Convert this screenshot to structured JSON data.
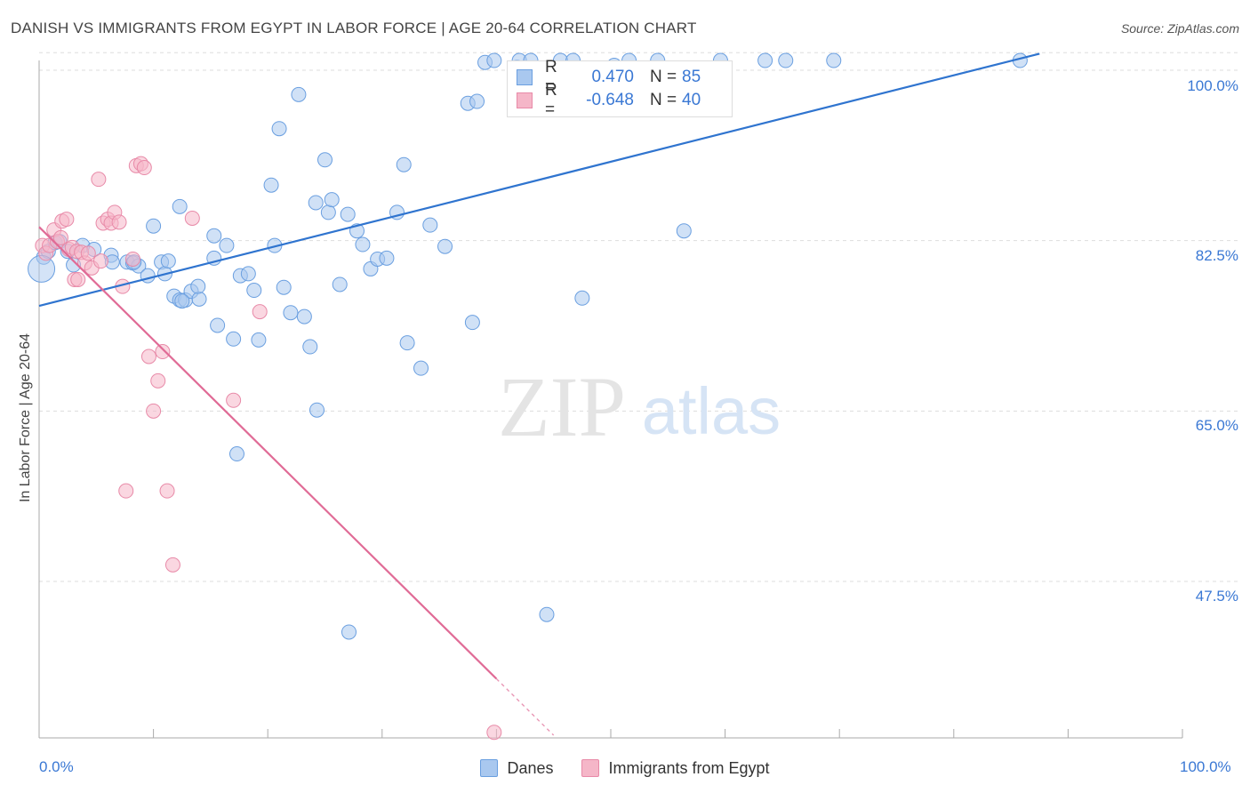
{
  "title": "DANISH VS IMMIGRANTS FROM EGYPT IN LABOR FORCE | AGE 20-64 CORRELATION CHART",
  "source": "Source: ZipAtlas.com",
  "watermark": {
    "zip": "ZIP",
    "atlas": "atlas"
  },
  "legend_top": {
    "rows": [
      {
        "r_label": "R =",
        "r_value": "0.470",
        "n_label": "N =",
        "n_value": "85"
      },
      {
        "r_label": "R =",
        "r_value": "-0.648",
        "n_label": "N =",
        "n_value": "40"
      }
    ]
  },
  "legend_bottom": [
    {
      "label": "Danes"
    },
    {
      "label": "Immigrants from Egypt"
    }
  ],
  "colors": {
    "blue_fill": "#a9c8ef",
    "blue_stroke": "#6a9fe0",
    "blue_line": "#2f74cf",
    "pink_fill": "#f5b6c8",
    "pink_stroke": "#e88aa8",
    "pink_line": "#e06b96",
    "tick_text": "#3a78d4",
    "grid": "#dddddd"
  },
  "chart_data": {
    "type": "scatter",
    "title": "DANISH VS IMMIGRANTS FROM EGYPT IN LABOR FORCE | AGE 20-64 CORRELATION CHART",
    "xlabel": "",
    "ylabel": "In Labor Force | Age 20-64",
    "xlim": [
      0,
      100
    ],
    "ylim": [
      32.5,
      102
    ],
    "x_tick_labels": [
      "0.0%",
      "100.0%"
    ],
    "y_ticks": [
      47.5,
      65.0,
      82.5,
      100.0
    ],
    "y_tick_labels": [
      "47.5%",
      "65.0%",
      "82.5%",
      "100.0%"
    ],
    "grid": true,
    "legend_position": "bottom",
    "series": [
      {
        "name": "Danes",
        "R": 0.47,
        "N": 85,
        "trend": {
          "x": [
            0,
            87.5
          ],
          "y": [
            75.8,
            101.7
          ]
        },
        "points": [
          [
            0.4,
            80.8
          ],
          [
            0.8,
            81.4
          ],
          [
            1.4,
            82.3
          ],
          [
            1.8,
            82.4
          ],
          [
            2.5,
            81.4
          ],
          [
            3.8,
            82.0
          ],
          [
            4.8,
            81.6
          ],
          [
            6.3,
            81.0
          ],
          [
            6.4,
            80.3
          ],
          [
            7.7,
            80.3
          ],
          [
            8.2,
            80.2
          ],
          [
            8.7,
            79.9
          ],
          [
            9.5,
            78.9
          ],
          [
            10.0,
            84.0
          ],
          [
            10.7,
            80.3
          ],
          [
            11.0,
            79.1
          ],
          [
            11.3,
            80.4
          ],
          [
            12.3,
            86.0
          ],
          [
            11.8,
            76.8
          ],
          [
            12.3,
            76.4
          ],
          [
            12.8,
            76.4
          ],
          [
            13.3,
            77.3
          ],
          [
            14.0,
            76.5
          ],
          [
            15.3,
            80.7
          ],
          [
            15.3,
            83.0
          ],
          [
            16.4,
            82.0
          ],
          [
            15.6,
            73.8
          ],
          [
            17.0,
            72.4
          ],
          [
            17.6,
            78.9
          ],
          [
            18.3,
            79.1
          ],
          [
            18.8,
            77.4
          ],
          [
            19.2,
            72.3
          ],
          [
            20.3,
            88.2
          ],
          [
            20.6,
            82.0
          ],
          [
            21.0,
            94.0
          ],
          [
            21.4,
            77.7
          ],
          [
            22.0,
            75.1
          ],
          [
            22.7,
            97.5
          ],
          [
            23.2,
            74.7
          ],
          [
            23.7,
            71.6
          ],
          [
            24.3,
            65.1
          ],
          [
            24.2,
            86.4
          ],
          [
            25.0,
            90.8
          ],
          [
            25.3,
            85.4
          ],
          [
            25.6,
            86.7
          ],
          [
            26.3,
            78.0
          ],
          [
            27.0,
            85.2
          ],
          [
            27.1,
            42.3
          ],
          [
            27.8,
            83.5
          ],
          [
            28.3,
            82.1
          ],
          [
            29.0,
            79.6
          ],
          [
            29.6,
            80.6
          ],
          [
            30.4,
            80.7
          ],
          [
            31.3,
            85.4
          ],
          [
            31.9,
            90.3
          ],
          [
            32.2,
            72.0
          ],
          [
            33.4,
            69.4
          ],
          [
            34.2,
            84.1
          ],
          [
            35.5,
            81.9
          ],
          [
            37.5,
            96.6
          ],
          [
            38.3,
            96.8
          ],
          [
            37.9,
            74.1
          ],
          [
            39.0,
            100.8
          ],
          [
            39.8,
            101.0
          ],
          [
            41.8,
            100.3
          ],
          [
            42.0,
            101.0
          ],
          [
            43.0,
            101.0
          ],
          [
            44.4,
            44.1
          ],
          [
            45.6,
            101.0
          ],
          [
            46.7,
            101.0
          ],
          [
            47.5,
            76.6
          ],
          [
            50.3,
            100.5
          ],
          [
            51.6,
            101.0
          ],
          [
            54.1,
            101.0
          ],
          [
            56.4,
            83.5
          ],
          [
            59.6,
            101.0
          ],
          [
            63.5,
            101.0
          ],
          [
            65.3,
            101.0
          ],
          [
            69.5,
            101.0
          ],
          [
            85.8,
            101.0
          ],
          [
            17.3,
            60.6
          ],
          [
            12.5,
            76.3
          ],
          [
            13.9,
            77.8
          ],
          [
            8.3,
            80.3
          ],
          [
            3.0,
            80.0
          ]
        ]
      },
      {
        "name": "Immigrants from Egypt",
        "R": -0.648,
        "N": 40,
        "trend": {
          "x": [
            0,
            40
          ],
          "y": [
            83.9,
            37.5
          ]
        },
        "trend_extension": {
          "x": [
            40,
            45
          ],
          "y": [
            37.5,
            31.7
          ]
        },
        "points": [
          [
            0.3,
            82.0
          ],
          [
            0.6,
            81.2
          ],
          [
            0.9,
            82.0
          ],
          [
            1.3,
            83.6
          ],
          [
            1.6,
            82.4
          ],
          [
            1.9,
            82.8
          ],
          [
            2.0,
            84.5
          ],
          [
            2.4,
            84.7
          ],
          [
            2.6,
            81.6
          ],
          [
            2.9,
            81.8
          ],
          [
            3.1,
            78.5
          ],
          [
            3.3,
            81.4
          ],
          [
            3.4,
            78.5
          ],
          [
            3.7,
            81.3
          ],
          [
            4.0,
            80.2
          ],
          [
            4.3,
            81.2
          ],
          [
            4.6,
            79.7
          ],
          [
            5.2,
            88.8
          ],
          [
            5.4,
            80.4
          ],
          [
            5.6,
            84.3
          ],
          [
            6.0,
            84.7
          ],
          [
            6.3,
            84.3
          ],
          [
            6.6,
            85.4
          ],
          [
            7.0,
            84.4
          ],
          [
            7.3,
            77.8
          ],
          [
            7.6,
            56.8
          ],
          [
            8.2,
            80.6
          ],
          [
            8.5,
            90.2
          ],
          [
            8.9,
            90.4
          ],
          [
            9.2,
            90.0
          ],
          [
            9.6,
            70.6
          ],
          [
            10.0,
            65.0
          ],
          [
            10.4,
            68.1
          ],
          [
            10.8,
            71.1
          ],
          [
            11.2,
            56.8
          ],
          [
            11.7,
            49.2
          ],
          [
            13.4,
            84.8
          ],
          [
            17.0,
            66.1
          ],
          [
            19.3,
            75.2
          ],
          [
            39.8,
            32.0
          ]
        ]
      }
    ]
  }
}
